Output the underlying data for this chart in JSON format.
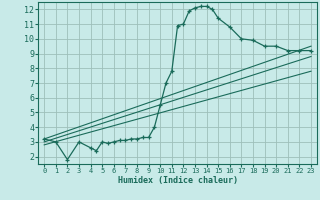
{
  "xlabel": "Humidex (Indice chaleur)",
  "bg_color": "#c8eae8",
  "grid_color": "#9dbfba",
  "line_color": "#1a6b5a",
  "xlim": [
    -0.5,
    23.5
  ],
  "ylim": [
    1.5,
    12.5
  ],
  "xticks": [
    0,
    1,
    2,
    3,
    4,
    5,
    6,
    7,
    8,
    9,
    10,
    11,
    12,
    13,
    14,
    15,
    16,
    17,
    18,
    19,
    20,
    21,
    22,
    23
  ],
  "yticks": [
    2,
    3,
    4,
    5,
    6,
    7,
    8,
    9,
    10,
    11,
    12
  ],
  "main_x": [
    0,
    1,
    2,
    3,
    4,
    4.5,
    5,
    5.5,
    6,
    6.5,
    7,
    7.5,
    8,
    8.5,
    9,
    9.5,
    10,
    10.5,
    11,
    11.5,
    12,
    12.5,
    13,
    13.5,
    14,
    14.5,
    15,
    16,
    17,
    18,
    19,
    20,
    21,
    22,
    23
  ],
  "main_y": [
    3.2,
    3.0,
    1.8,
    3.0,
    2.6,
    2.4,
    3.0,
    2.9,
    3.0,
    3.1,
    3.1,
    3.2,
    3.2,
    3.3,
    3.3,
    4.0,
    5.5,
    7.0,
    7.8,
    10.9,
    11.0,
    11.9,
    12.1,
    12.2,
    12.2,
    12.0,
    11.4,
    10.8,
    10.0,
    9.9,
    9.5,
    9.5,
    9.2,
    9.2,
    9.2
  ],
  "line1_x": [
    0,
    23
  ],
  "line1_y": [
    3.2,
    9.5
  ],
  "line2_x": [
    0,
    23
  ],
  "line2_y": [
    3.0,
    8.8
  ],
  "line3_x": [
    0,
    23
  ],
  "line3_y": [
    2.8,
    7.8
  ]
}
